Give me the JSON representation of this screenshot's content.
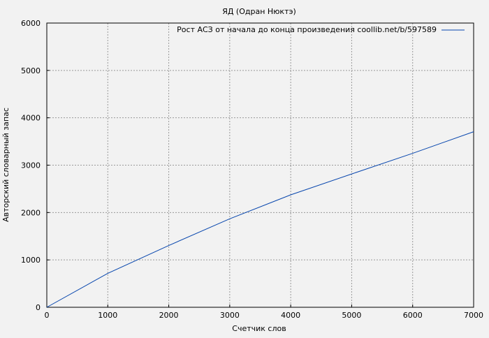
{
  "chart_data": {
    "type": "line",
    "title": "ЯД (Одран Нюктэ)",
    "xlabel": "Счетчик слов",
    "ylabel": "Авторский словарный запас",
    "xlim": [
      0,
      7000
    ],
    "ylim": [
      0,
      6000
    ],
    "xticks": [
      0,
      1000,
      2000,
      3000,
      4000,
      5000,
      6000,
      7000
    ],
    "yticks": [
      0,
      1000,
      2000,
      3000,
      4000,
      5000,
      6000
    ],
    "grid": true,
    "legend_position": "top-right",
    "series": [
      {
        "name": "Рост АСЗ от начала до конца произведения coollib.net/b/597589",
        "color": "#0645ad",
        "x": [
          0,
          1000,
          2000,
          3000,
          4000,
          5000,
          6000,
          7000
        ],
        "y": [
          0,
          716,
          1304,
          1868,
          2373,
          2814,
          3250,
          3706
        ]
      }
    ]
  }
}
